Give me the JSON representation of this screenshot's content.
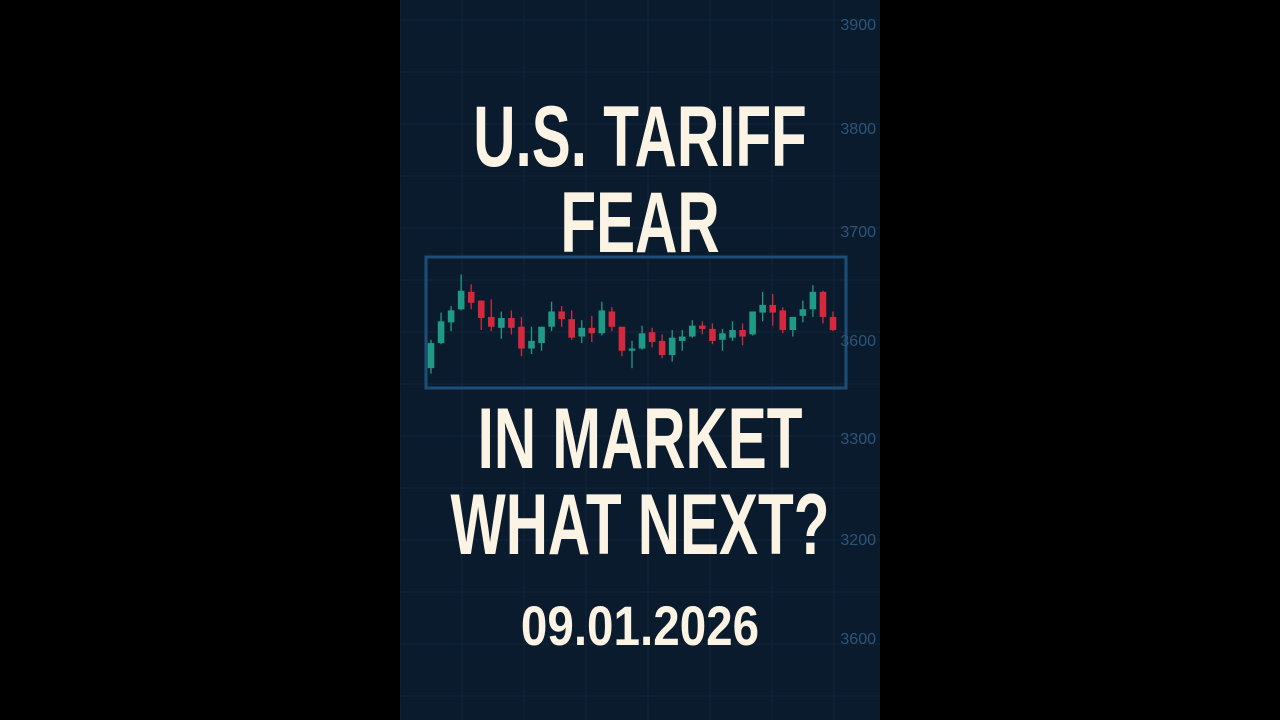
{
  "colors": {
    "background": "#0a1b2e",
    "panel_outer": "#000000",
    "text": "#fbf3e3",
    "up": "#1f9a86",
    "down": "#d4283c",
    "box": "#1d4e78",
    "axis": "#2c5578"
  },
  "headline": {
    "line1": "U.S. TARIFF",
    "line2": "FEAR",
    "line3": "IN MARKET",
    "line4": "WHAT NEXT?"
  },
  "date": "09.01.2026",
  "axis_labels": [
    "3900",
    "3800",
    "3700",
    "3600",
    "3300",
    "3200",
    "3600"
  ],
  "chart_data": {
    "type": "candlestick",
    "candles": [
      [
        3576,
        3602,
        3571,
        3599
      ],
      [
        3599,
        3627,
        3598,
        3619
      ],
      [
        3618,
        3633,
        3610,
        3629
      ],
      [
        3630,
        3662,
        3629,
        3647
      ],
      [
        3646,
        3653,
        3630,
        3636
      ],
      [
        3638,
        3638,
        3611,
        3622
      ],
      [
        3623,
        3639,
        3610,
        3614
      ],
      [
        3613,
        3628,
        3603,
        3622
      ],
      [
        3622,
        3629,
        3607,
        3613
      ],
      [
        3614,
        3623,
        3587,
        3594
      ],
      [
        3594,
        3614,
        3589,
        3601
      ],
      [
        3599,
        3614,
        3592,
        3614
      ],
      [
        3614,
        3637,
        3610,
        3628
      ],
      [
        3628,
        3633,
        3614,
        3621
      ],
      [
        3621,
        3629,
        3602,
        3604
      ],
      [
        3605,
        3620,
        3599,
        3613
      ],
      [
        3613,
        3624,
        3600,
        3608
      ],
      [
        3608,
        3637,
        3606,
        3629
      ],
      [
        3628,
        3632,
        3610,
        3614
      ],
      [
        3614,
        3614,
        3587,
        3592
      ],
      [
        3592,
        3601,
        3576,
        3594
      ],
      [
        3594,
        3615,
        3593,
        3608
      ],
      [
        3609,
        3613,
        3595,
        3600
      ],
      [
        3601,
        3607,
        3585,
        3588
      ],
      [
        3588,
        3611,
        3582,
        3604
      ],
      [
        3601,
        3611,
        3592,
        3605
      ],
      [
        3605,
        3620,
        3604,
        3615
      ],
      [
        3615,
        3619,
        3607,
        3612
      ],
      [
        3612,
        3617,
        3598,
        3601
      ],
      [
        3602,
        3612,
        3592,
        3608
      ],
      [
        3604,
        3619,
        3601,
        3611
      ],
      [
        3611,
        3617,
        3597,
        3605
      ],
      [
        3607,
        3628,
        3606,
        3628
      ],
      [
        3627,
        3646,
        3619,
        3634
      ],
      [
        3634,
        3644,
        3615,
        3627
      ],
      [
        3629,
        3632,
        3608,
        3611
      ],
      [
        3611,
        3623,
        3605,
        3623
      ],
      [
        3624,
        3638,
        3618,
        3630
      ],
      [
        3630,
        3652,
        3623,
        3646
      ],
      [
        3646,
        3647,
        3617,
        3623
      ],
      [
        3623,
        3628,
        3610,
        3611
      ]
    ],
    "candle_format": [
      "open",
      "high",
      "low",
      "close"
    ]
  }
}
